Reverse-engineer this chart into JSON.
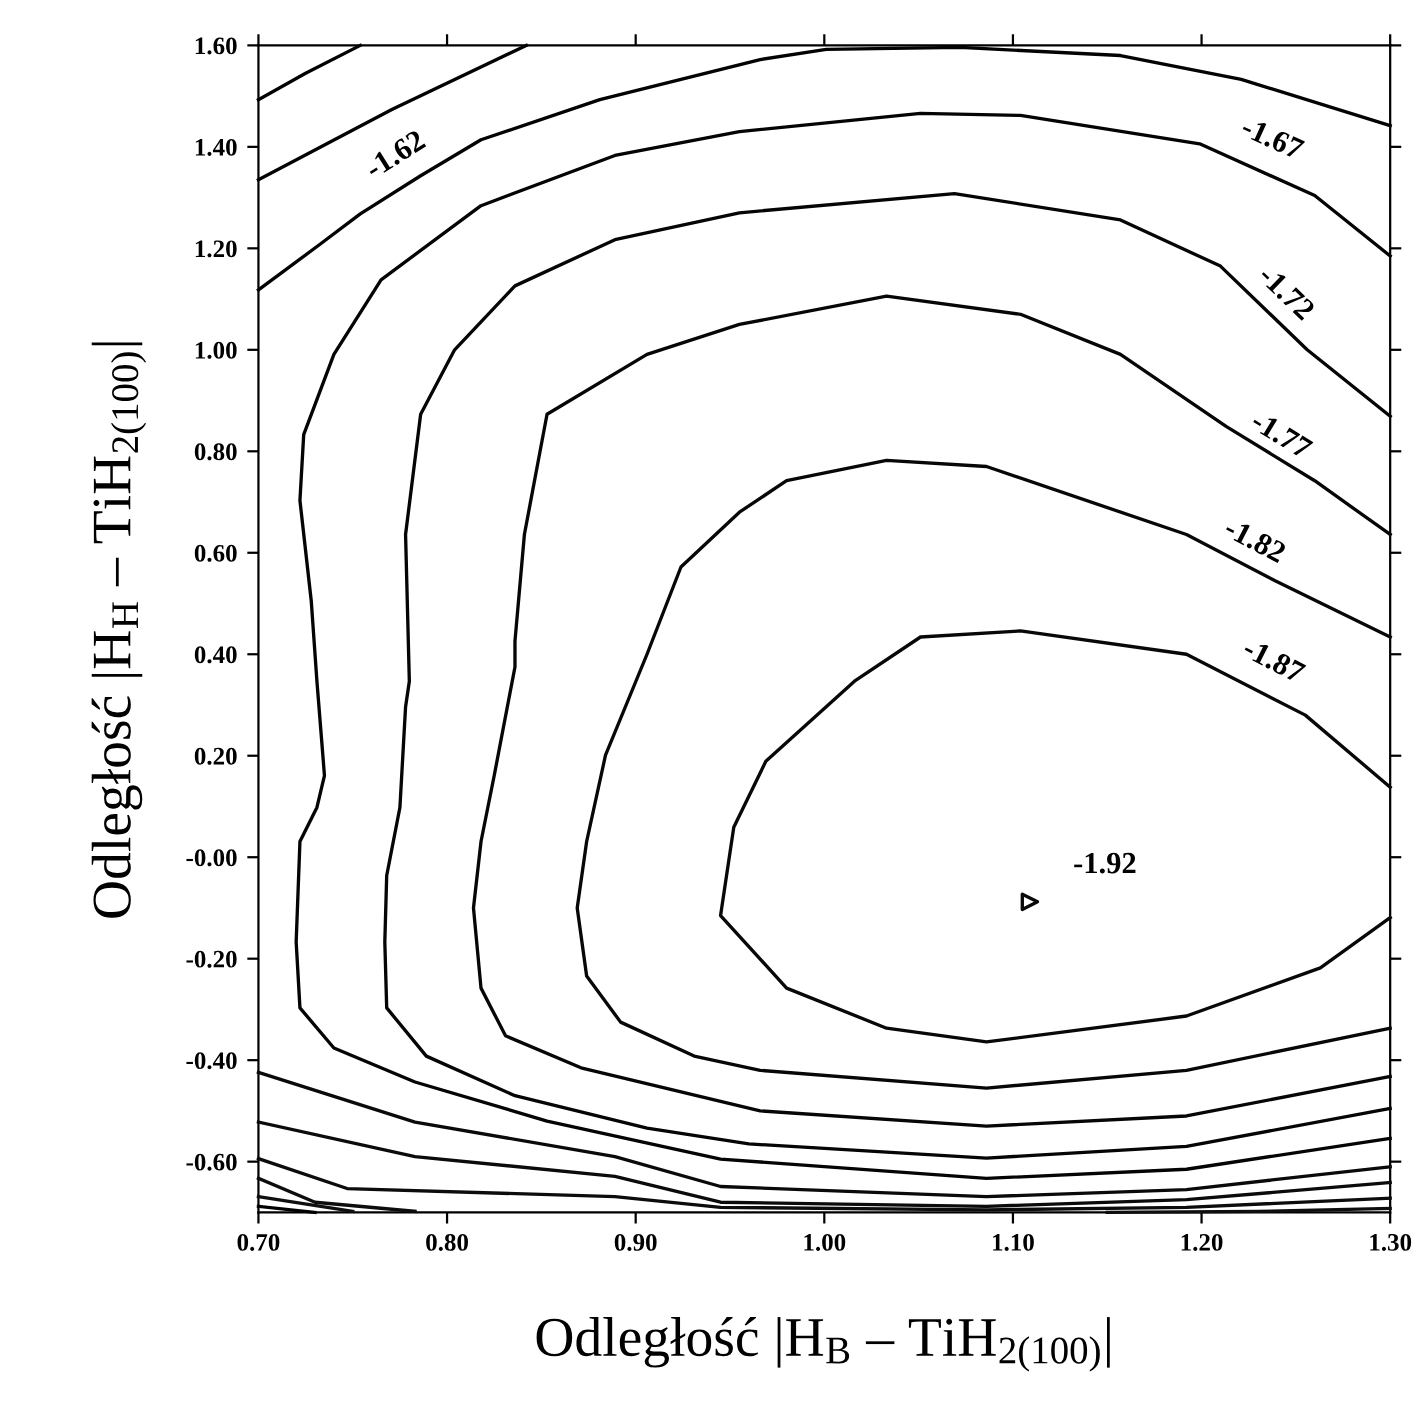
{
  "chart_data": {
    "type": "line",
    "xlabel": "Odległość |H$_{B}$ – TiH$_{2(100)}$|",
    "ylabel": "Odległość |H$_{H}$ – TiH$_{2(100)}$|",
    "xlim": [
      0.7,
      1.3
    ],
    "ylim": [
      -0.7,
      1.6
    ],
    "xticks": [
      {
        "value": 0.7,
        "label": "0.70"
      },
      {
        "value": 0.8,
        "label": "0.80"
      },
      {
        "value": 0.9,
        "label": "0.90"
      },
      {
        "value": 1.0,
        "label": "1.00"
      },
      {
        "value": 1.1,
        "label": "1.10"
      },
      {
        "value": 1.2,
        "label": "1.20"
      },
      {
        "value": 1.3,
        "label": "1.30"
      }
    ],
    "yticks": [
      {
        "value": -0.6,
        "label": "-0.60"
      },
      {
        "value": -0.4,
        "label": "-0.40"
      },
      {
        "value": -0.2,
        "label": "-0.20"
      },
      {
        "value": 0,
        "label": "-0.00"
      },
      {
        "value": 0.2,
        "label": "0.20"
      },
      {
        "value": 0.4,
        "label": "0.40"
      },
      {
        "value": 0.6,
        "label": "0.60"
      },
      {
        "value": 0.8,
        "label": "0.80"
      },
      {
        "value": 1.0,
        "label": "1.00"
      },
      {
        "value": 1.2,
        "label": "1.20"
      },
      {
        "value": 1.4,
        "label": "1.40"
      },
      {
        "value": 1.6,
        "label": "1.60"
      }
    ],
    "series": [
      {
        "color": "#010101",
        "x": [
          0.7,
          0.725,
          0.754
        ],
        "values": [
          1.493,
          1.545,
          1.6
        ]
      },
      {
        "color": "#020202",
        "x": [
          0.7,
          0.771,
          0.842
        ],
        "values": [
          1.335,
          1.474,
          1.6
        ]
      },
      {
        "color": "#030303",
        "x": [
          0.7,
          0.733,
          0.754,
          0.786,
          0.818,
          0.881,
          0.966,
          1.001,
          1.072,
          1.157,
          1.221,
          1.3
        ],
        "values": [
          1.118,
          1.209,
          1.268,
          1.343,
          1.414,
          1.493,
          1.572,
          1.592,
          1.596,
          1.58,
          1.533,
          1.442
        ]
      },
      {
        "color": "#040404",
        "x": [
          1.3,
          1.26,
          1.199,
          1.104,
          1.051,
          0.955,
          0.889,
          0.818,
          0.765,
          0.74,
          0.724,
          0.722,
          0.728,
          0.731,
          0.735,
          0.731,
          0.722,
          0.72,
          0.722,
          0.74,
          0.783,
          0.853,
          0.945,
          1.086,
          1.192,
          1.3
        ],
        "values": [
          1.185,
          1.304,
          1.406,
          1.462,
          1.466,
          1.43,
          1.383,
          1.284,
          1.138,
          0.991,
          0.833,
          0.703,
          0.505,
          0.347,
          0.161,
          0.098,
          0.031,
          -0.167,
          -0.297,
          -0.376,
          -0.443,
          -0.52,
          -0.595,
          -0.633,
          -0.615,
          -0.554
        ]
      },
      {
        "color": "#050505",
        "x": [
          1.3,
          1.256,
          1.21,
          1.157,
          1.069,
          0.955,
          0.889,
          0.836,
          0.804,
          0.786,
          0.778,
          0.78,
          0.778,
          0.775,
          0.768,
          0.767,
          0.768,
          0.789,
          0.836,
          0.906,
          0.96,
          1.086,
          1.192,
          1.3
        ],
        "values": [
          0.869,
          1.0,
          1.165,
          1.256,
          1.308,
          1.27,
          1.217,
          1.126,
          1.0,
          0.873,
          0.636,
          0.347,
          0.296,
          0.098,
          -0.036,
          -0.167,
          -0.297,
          -0.392,
          -0.47,
          -0.534,
          -0.565,
          -0.593,
          -0.57,
          -0.495
        ]
      },
      {
        "color": "#060606",
        "x": [
          1.3,
          1.26,
          1.213,
          1.157,
          1.104,
          1.033,
          0.955,
          0.906,
          0.853,
          0.841,
          0.836,
          0.836,
          0.825,
          0.818,
          0.814,
          0.818,
          0.831,
          0.871,
          0.966,
          1.086,
          1.192,
          1.3
        ],
        "values": [
          0.636,
          0.742,
          0.849,
          0.991,
          1.07,
          1.106,
          1.05,
          0.991,
          0.873,
          0.636,
          0.426,
          0.375,
          0.161,
          0.031,
          -0.1,
          -0.258,
          -0.352,
          -0.415,
          -0.5,
          -0.53,
          -0.51,
          -0.432
        ]
      },
      {
        "color": "#070707",
        "x": [
          1.3,
          1.239,
          1.192,
          1.086,
          1.033,
          0.98,
          0.955,
          0.924,
          0.906,
          0.884,
          0.874,
          0.869,
          0.874,
          0.892,
          0.931,
          0.966,
          1.086,
          1.192,
          1.3
        ],
        "values": [
          0.434,
          0.545,
          0.636,
          0.77,
          0.782,
          0.742,
          0.68,
          0.572,
          0.4,
          0.201,
          0.031,
          -0.1,
          -0.234,
          -0.325,
          -0.392,
          -0.42,
          -0.455,
          -0.42,
          -0.337
        ]
      },
      {
        "color": "#080808",
        "x": [
          1.3,
          1.255,
          1.192,
          1.104,
          1.051,
          1.016,
          0.969,
          0.952,
          0.945,
          0.98,
          1.033,
          1.086,
          1.192,
          1.263,
          1.3
        ],
        "values": [
          0.138,
          0.28,
          0.4,
          0.446,
          0.434,
          0.347,
          0.189,
          0.059,
          -0.115,
          -0.258,
          -0.337,
          -0.364,
          -0.313,
          -0.218,
          -0.119
        ]
      },
      {
        "type": "scatter",
        "marker": "triangle",
        "color": "#090909",
        "x": [
          1.109
        ],
        "values": [
          -0.088
        ]
      },
      {
        "color": "#0a0a0a",
        "x": [
          0.7,
          0.783,
          0.889,
          0.945,
          1.086,
          1.192,
          1.3
        ],
        "values": [
          -0.424,
          -0.522,
          -0.59,
          -0.649,
          -0.669,
          -0.655,
          -0.61
        ]
      },
      {
        "color": "#0b0b0b",
        "x": [
          0.7,
          0.783,
          0.889,
          0.945,
          1.086,
          1.192,
          1.3
        ],
        "values": [
          -0.522,
          -0.59,
          -0.629,
          -0.68,
          -0.688,
          -0.675,
          -0.641
        ]
      },
      {
        "color": "#0c0c0c",
        "x": [
          0.7,
          0.747,
          0.889,
          0.945,
          1.086,
          1.192,
          1.3
        ],
        "values": [
          -0.594,
          -0.653,
          -0.669,
          -0.69,
          -0.695,
          -0.69,
          -0.672
        ]
      },
      {
        "color": "#0d0d0d",
        "x": [
          0.7,
          0.73,
          0.783
        ],
        "values": [
          -0.633,
          -0.68,
          -0.698
        ]
      },
      {
        "color": "#0e0e0e",
        "x": [
          1.15,
          1.23,
          1.3
        ],
        "values": [
          -0.7,
          -0.698,
          -0.692
        ]
      },
      {
        "color": "#0f0f0f",
        "x": [
          0.7,
          0.75
        ],
        "values": [
          -0.669,
          -0.698
        ]
      },
      {
        "color": "#000000",
        "x": [
          0.7,
          0.73
        ],
        "values": [
          -0.688,
          -0.7
        ]
      }
    ],
    "annotations": [
      {
        "text": "-1.62",
        "x": 0.781,
        "y": 1.335
      },
      {
        "text": "-1.67",
        "x": 1.231,
        "y": 1.363
      },
      {
        "text": "-1.72",
        "x": 1.234,
        "y": 1.07
      },
      {
        "text": "-1.77",
        "x": 1.234,
        "y": 0.782
      },
      {
        "text": "-1.82",
        "x": 1.221,
        "y": 0.572
      },
      {
        "text": "-1.87",
        "x": 1.231,
        "y": 0.335
      },
      {
        "text": "-1.92",
        "x": 1.109,
        "y": -0.088
      }
    ]
  }
}
